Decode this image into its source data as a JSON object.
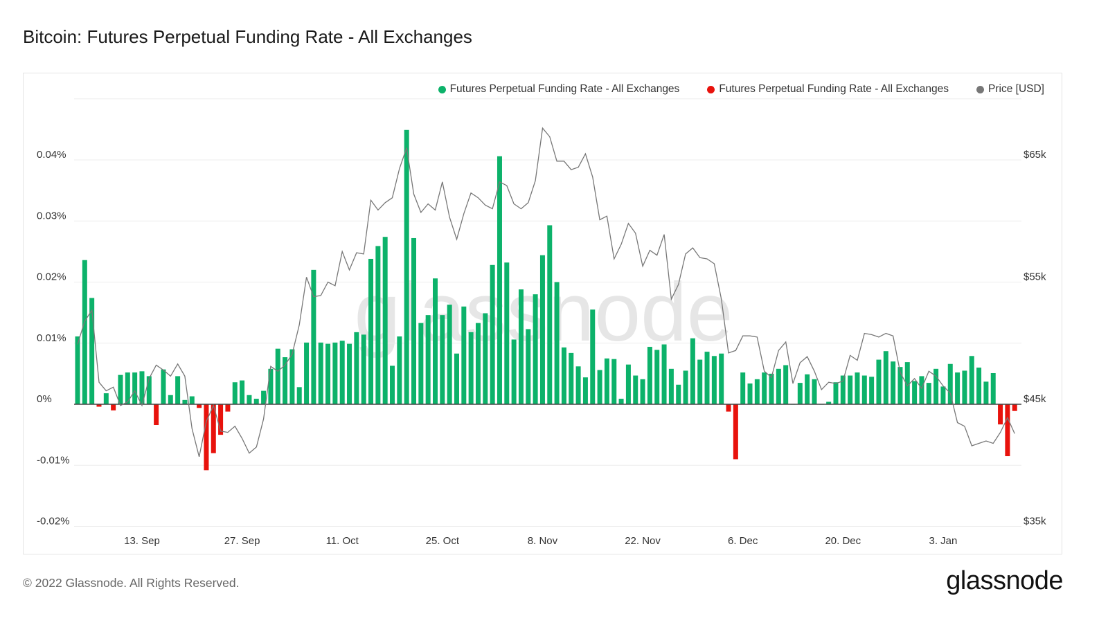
{
  "title": "Bitcoin: Futures Perpetual Funding Rate - All Exchanges",
  "footer": "© 2022 Glassnode. All Rights Reserved.",
  "logo": "glassnode",
  "watermark": "glassnode",
  "colors": {
    "positive": "#0cb26a",
    "negative": "#e8120c",
    "price": "#777777",
    "grid": "#eeeeee"
  },
  "legend": [
    {
      "label": "Futures Perpetual Funding Rate - All Exchanges",
      "color": "#0cb26a"
    },
    {
      "label": "Futures Perpetual Funding Rate - All Exchanges",
      "color": "#e8120c"
    },
    {
      "label": "Price [USD]",
      "color": "#777777"
    }
  ],
  "chart_data": {
    "type": "bar+line",
    "title": "Bitcoin: Futures Perpetual Funding Rate - All Exchanges",
    "grid": true,
    "legend_position": "top-right",
    "x_ticks": [
      {
        "label": "13. Sep",
        "date": "2021-09-13"
      },
      {
        "label": "27. Sep",
        "date": "2021-09-27"
      },
      {
        "label": "11. Oct",
        "date": "2021-10-11"
      },
      {
        "label": "25. Oct",
        "date": "2021-10-25"
      },
      {
        "label": "8. Nov",
        "date": "2021-11-08"
      },
      {
        "label": "22. Nov",
        "date": "2021-11-22"
      },
      {
        "label": "6. Dec",
        "date": "2021-12-06"
      },
      {
        "label": "20. Dec",
        "date": "2021-12-20"
      },
      {
        "label": "3. Jan",
        "date": "2022-01-03"
      }
    ],
    "y_left": {
      "unit": "%",
      "ylim": [
        -0.02,
        0.05
      ],
      "ticks": [
        {
          "value": 0.04,
          "label": "0.04%"
        },
        {
          "value": 0.03,
          "label": "0.03%"
        },
        {
          "value": 0.02,
          "label": "0.02%"
        },
        {
          "value": 0.01,
          "label": "0.01%"
        },
        {
          "value": 0,
          "label": "0%"
        },
        {
          "value": -0.01,
          "label": "-0.01%"
        },
        {
          "value": -0.02,
          "label": "-0.02%"
        }
      ]
    },
    "y_right": {
      "unit": "USD",
      "ylim": [
        35000,
        70000
      ],
      "ticks": [
        {
          "value": 65000,
          "label": "$65k"
        },
        {
          "value": 55000,
          "label": "$55k"
        },
        {
          "value": 45000,
          "label": "$45k"
        },
        {
          "value": 35000,
          "label": "$35k"
        }
      ]
    },
    "dates": [
      "2021-09-04",
      "2021-09-05",
      "2021-09-06",
      "2021-09-07",
      "2021-09-08",
      "2021-09-09",
      "2021-09-10",
      "2021-09-11",
      "2021-09-12",
      "2021-09-13",
      "2021-09-14",
      "2021-09-15",
      "2021-09-16",
      "2021-09-17",
      "2021-09-18",
      "2021-09-19",
      "2021-09-20",
      "2021-09-21",
      "2021-09-22",
      "2021-09-23",
      "2021-09-24",
      "2021-09-25",
      "2021-09-26",
      "2021-09-27",
      "2021-09-28",
      "2021-09-29",
      "2021-09-30",
      "2021-10-01",
      "2021-10-02",
      "2021-10-03",
      "2021-10-04",
      "2021-10-05",
      "2021-10-06",
      "2021-10-07",
      "2021-10-08",
      "2021-10-09",
      "2021-10-10",
      "2021-10-11",
      "2021-10-12",
      "2021-10-13",
      "2021-10-14",
      "2021-10-15",
      "2021-10-16",
      "2021-10-17",
      "2021-10-18",
      "2021-10-19",
      "2021-10-20",
      "2021-10-21",
      "2021-10-22",
      "2021-10-23",
      "2021-10-24",
      "2021-10-25",
      "2021-10-26",
      "2021-10-27",
      "2021-10-28",
      "2021-10-29",
      "2021-10-30",
      "2021-10-31",
      "2021-11-01",
      "2021-11-02",
      "2021-11-03",
      "2021-11-04",
      "2021-11-05",
      "2021-11-06",
      "2021-11-07",
      "2021-11-08",
      "2021-11-09",
      "2021-11-10",
      "2021-11-11",
      "2021-11-12",
      "2021-11-13",
      "2021-11-14",
      "2021-11-15",
      "2021-11-16",
      "2021-11-17",
      "2021-11-18",
      "2021-11-19",
      "2021-11-20",
      "2021-11-21",
      "2021-11-22",
      "2021-11-23",
      "2021-11-24",
      "2021-11-25",
      "2021-11-26",
      "2021-11-27",
      "2021-11-28",
      "2021-11-29",
      "2021-11-30",
      "2021-12-01",
      "2021-12-02",
      "2021-12-03",
      "2021-12-04",
      "2021-12-05",
      "2021-12-06",
      "2021-12-07",
      "2021-12-08",
      "2021-12-09",
      "2021-12-10",
      "2021-12-11",
      "2021-12-12",
      "2021-12-13",
      "2021-12-14",
      "2021-12-15",
      "2021-12-16",
      "2021-12-17",
      "2021-12-18",
      "2021-12-19",
      "2021-12-20",
      "2021-12-21",
      "2021-12-22",
      "2021-12-23",
      "2021-12-24",
      "2021-12-25",
      "2021-12-26",
      "2021-12-27",
      "2021-12-28",
      "2021-12-29",
      "2021-12-30",
      "2021-12-31",
      "2022-01-01",
      "2022-01-02",
      "2022-01-03",
      "2022-01-04",
      "2022-01-05",
      "2022-01-06",
      "2022-01-07",
      "2022-01-08",
      "2022-01-09",
      "2022-01-10",
      "2022-01-11",
      "2022-01-12",
      "2022-01-13"
    ],
    "series": [
      {
        "name": "Futures Perpetual Funding Rate - All Exchanges",
        "type": "bar",
        "unit": "%",
        "values": [
          0.0111,
          0.0236,
          0.0174,
          -0.0004,
          0.0018,
          -0.001,
          0.0048,
          0.0052,
          0.0052,
          0.0054,
          0.0046,
          -0.0034,
          0.0057,
          0.0015,
          0.0046,
          0.0007,
          0.0013,
          -0.0006,
          -0.0108,
          -0.008,
          -0.005,
          -0.0012,
          0.0036,
          0.0039,
          0.0015,
          0.0009,
          0.0022,
          0.0058,
          0.0091,
          0.0077,
          0.009,
          0.0028,
          0.0101,
          0.022,
          0.0101,
          0.0099,
          0.0101,
          0.0104,
          0.0099,
          0.0118,
          0.0114,
          0.0238,
          0.0259,
          0.0274,
          0.0063,
          0.0111,
          0.0449,
          0.0272,
          0.0133,
          0.0146,
          0.0206,
          0.0146,
          0.0163,
          0.0083,
          0.016,
          0.0118,
          0.0133,
          0.0149,
          0.0228,
          0.0406,
          0.0232,
          0.0106,
          0.0188,
          0.0123,
          0.018,
          0.0244,
          0.0293,
          0.02,
          0.0093,
          0.0084,
          0.0062,
          0.0044,
          0.0155,
          0.0056,
          0.0075,
          0.0074,
          0.0009,
          0.0065,
          0.0047,
          0.0041,
          0.0094,
          0.0089,
          0.0098,
          0.0058,
          0.0032,
          0.0055,
          0.0108,
          0.0073,
          0.0086,
          0.0079,
          0.0083,
          -0.0012,
          -0.009,
          0.0052,
          0.0034,
          0.0041,
          0.0052,
          0.005,
          0.0058,
          0.0064,
          0.0,
          0.0035,
          0.0049,
          0.0041,
          0.0,
          0.0004,
          0.0036,
          0.0047,
          0.0047,
          0.0052,
          0.0047,
          0.0045,
          0.0073,
          0.0087,
          0.007,
          0.0061,
          0.0069,
          0.0038,
          0.0046,
          0.0035,
          0.0058,
          0.0029,
          0.0066,
          0.0052,
          0.0055,
          0.0079,
          0.006,
          0.0037,
          0.0051,
          -0.0033,
          -0.0085,
          -0.0011
        ]
      },
      {
        "name": "Price [USD]",
        "type": "line",
        "unit": "USD",
        "values": [
          49900,
          51800,
          52700,
          46800,
          46100,
          46400,
          44900,
          45200,
          46100,
          44900,
          47100,
          48200,
          47800,
          47300,
          48300,
          47300,
          43000,
          40700,
          43600,
          44900,
          42800,
          42700,
          43200,
          42200,
          41000,
          41500,
          43800,
          48100,
          47700,
          48200,
          49100,
          51500,
          55400,
          53800,
          53900,
          55000,
          54700,
          57500,
          56000,
          57400,
          57300,
          61700,
          60900,
          61500,
          61900,
          64300,
          66000,
          62200,
          60700,
          61400,
          60900,
          63200,
          60300,
          58500,
          60600,
          62300,
          61900,
          61300,
          61000,
          63200,
          62900,
          61400,
          61000,
          61500,
          63300,
          67600,
          66900,
          64900,
          64900,
          64200,
          64400,
          65500,
          63600,
          60100,
          60400,
          56900,
          58100,
          59800,
          59000,
          56300,
          57600,
          57200,
          58900,
          53600,
          54800,
          57300,
          57800,
          57000,
          56900,
          56500,
          53600,
          49200,
          49400,
          50600,
          50600,
          50500,
          47700,
          47200,
          49400,
          50100,
          46700,
          48400,
          48900,
          47700,
          46200,
          46800,
          46700,
          46900,
          49000,
          48600,
          50800,
          50700,
          50500,
          50800,
          50600,
          47600,
          46500,
          47100,
          46300,
          47700,
          47300,
          46500,
          45900,
          43500,
          43200,
          41600,
          41800,
          42000,
          41800,
          42700,
          43900,
          42600
        ]
      }
    ]
  }
}
